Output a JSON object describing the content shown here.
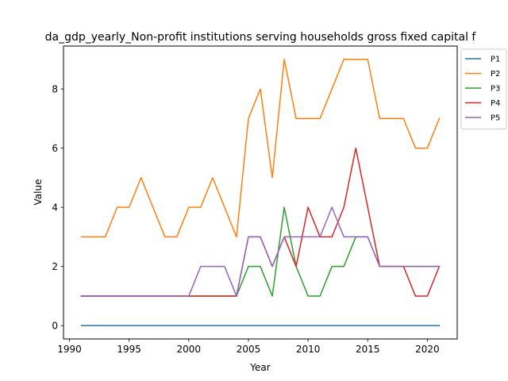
{
  "chart_data": {
    "type": "line",
    "title": "da_gdp_yearly_Non-profit institutions serving households gross fixed capital f",
    "xlabel": "Year",
    "ylabel": "Value",
    "xlim": [
      1989.5,
      2022.5
    ],
    "ylim": [
      -0.45,
      9.45
    ],
    "xticks": [
      1990,
      1995,
      2000,
      2005,
      2010,
      2015,
      2020
    ],
    "yticks": [
      0,
      2,
      4,
      6,
      8
    ],
    "grid": false,
    "legend_position": "top-right (outside)",
    "x": [
      1991,
      1992,
      1993,
      1994,
      1995,
      1996,
      1997,
      1998,
      1999,
      2000,
      2001,
      2002,
      2003,
      2004,
      2005,
      2006,
      2007,
      2008,
      2009,
      2010,
      2011,
      2012,
      2013,
      2014,
      2015,
      2016,
      2017,
      2018,
      2019,
      2020,
      2021
    ],
    "series": [
      {
        "name": "P1",
        "color": "#1f77b4",
        "values": [
          0,
          0,
          0,
          0,
          0,
          0,
          0,
          0,
          0,
          0,
          0,
          0,
          0,
          0,
          0,
          0,
          0,
          0,
          0,
          0,
          0,
          0,
          0,
          0,
          0,
          0,
          0,
          0,
          0,
          0,
          0
        ]
      },
      {
        "name": "P2",
        "color": "#ff7f0e",
        "values": [
          3,
          3,
          3,
          4,
          4,
          5,
          4,
          3,
          3,
          4,
          4,
          5,
          4,
          3,
          7,
          8,
          5,
          9,
          7,
          7,
          7,
          8,
          9,
          9,
          9,
          7,
          7,
          7,
          6,
          6,
          7
        ]
      },
      {
        "name": "P3",
        "color": "#2ca02c",
        "values": [
          1,
          1,
          1,
          1,
          1,
          1,
          1,
          1,
          1,
          1,
          1,
          1,
          1,
          1,
          2,
          2,
          1,
          4,
          2,
          1,
          1,
          2,
          2,
          3,
          3,
          2,
          2,
          2,
          2,
          2,
          2
        ]
      },
      {
        "name": "P4",
        "color": "#d62728",
        "values": [
          1,
          1,
          1,
          1,
          1,
          1,
          1,
          1,
          1,
          1,
          1,
          1,
          1,
          1,
          3,
          3,
          2,
          3,
          2,
          4,
          3,
          3,
          4,
          6,
          4,
          2,
          2,
          2,
          1,
          1,
          2
        ]
      },
      {
        "name": "P5",
        "color": "#9467bd",
        "values": [
          1,
          1,
          1,
          1,
          1,
          1,
          1,
          1,
          1,
          1,
          2,
          2,
          2,
          1,
          3,
          3,
          2,
          3,
          3,
          3,
          3,
          4,
          3,
          3,
          3,
          2,
          2,
          2,
          2,
          2,
          2
        ]
      }
    ]
  }
}
